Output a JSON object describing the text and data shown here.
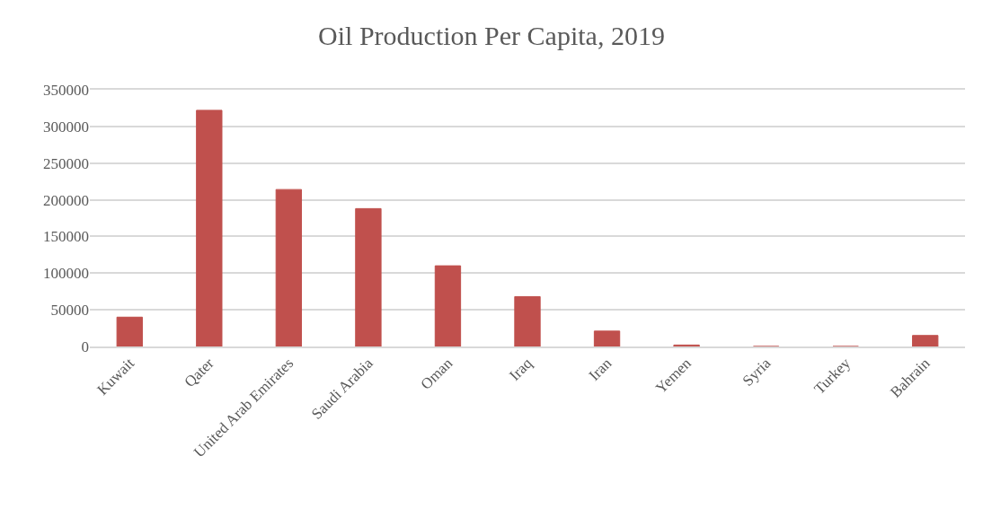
{
  "chart_data": {
    "type": "bar",
    "title": "Oil Production Per Capita, 2019",
    "categories": [
      "Kuwait",
      "Qater",
      "United Arab Emirates",
      "Saudi Arabia",
      "Oman",
      "Iraq",
      "Iran",
      "Yemen",
      "Syria",
      "Turkey",
      "Bahrain"
    ],
    "values": [
      40000,
      322000,
      214000,
      188000,
      110000,
      68000,
      21000,
      2000,
      0,
      0,
      15000
    ],
    "color": "#c0504d",
    "ylim": [
      0,
      350000
    ],
    "yticks": [
      0,
      50000,
      100000,
      150000,
      200000,
      250000,
      300000,
      350000
    ],
    "grid": "y"
  }
}
